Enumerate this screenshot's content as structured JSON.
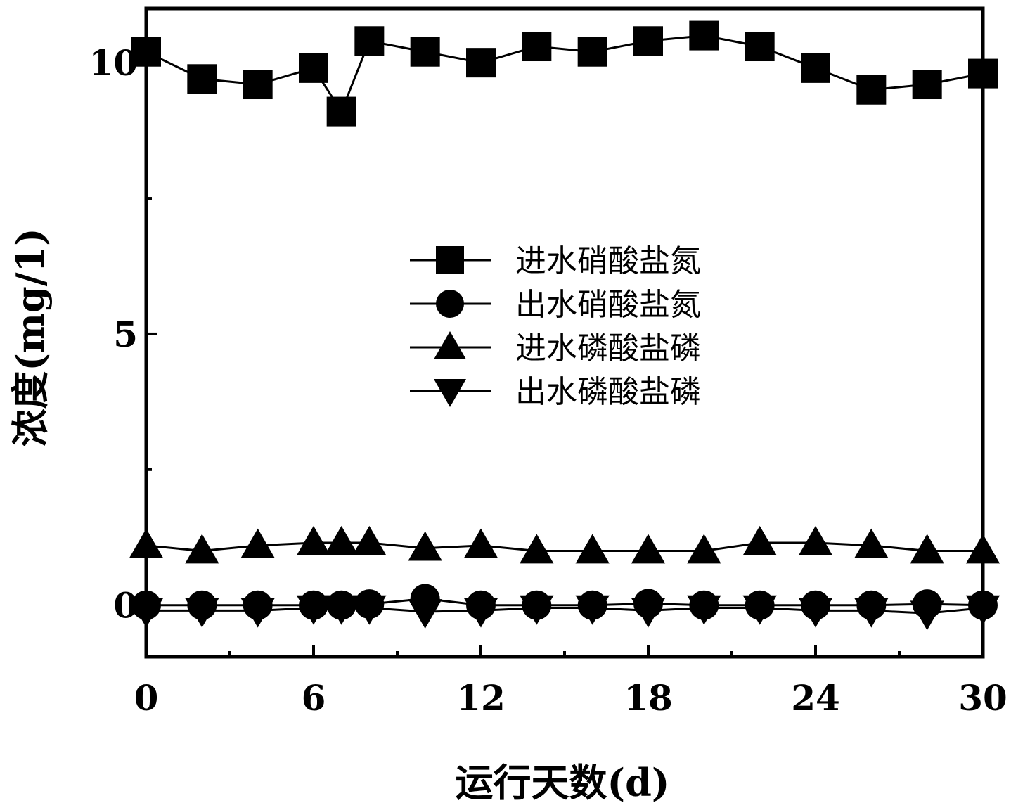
{
  "chart_data": {
    "type": "line",
    "xlabel": "运行天数(d)",
    "ylabel": "浓度(mg/1)",
    "xlim": [
      0,
      30
    ],
    "ylim": [
      -0.95,
      11.0
    ],
    "xticks": [
      "0",
      "6",
      "12",
      "18",
      "24",
      "30"
    ],
    "yticks": [
      "0",
      "5",
      "10"
    ],
    "grid": false,
    "legend_position": "center",
    "series": [
      {
        "name": "进水硝酸盐氮",
        "marker": "square",
        "x": [
          0,
          2,
          4,
          6,
          7,
          8,
          10,
          12,
          14,
          16,
          18,
          20,
          22,
          24,
          26,
          28,
          30
        ],
        "y": [
          10.2,
          9.7,
          9.6,
          9.9,
          9.1,
          10.4,
          10.2,
          10.0,
          10.3,
          10.2,
          10.4,
          10.5,
          10.3,
          9.9,
          9.5,
          9.6,
          9.8
        ]
      },
      {
        "name": "出水硝酸盐氮",
        "marker": "circle",
        "x": [
          0,
          2,
          4,
          6,
          7,
          8,
          10,
          12,
          14,
          16,
          18,
          20,
          22,
          24,
          26,
          28,
          30
        ],
        "y": [
          0.0,
          0.0,
          0.0,
          0.0,
          0.0,
          0.02,
          0.12,
          0.0,
          0.0,
          0.0,
          0.03,
          0.0,
          0.0,
          0.0,
          0.0,
          0.02,
          0.0
        ]
      },
      {
        "name": "进水磷酸盐磷",
        "marker": "triangle-up",
        "x": [
          0,
          2,
          4,
          6,
          7,
          8,
          10,
          12,
          14,
          16,
          18,
          20,
          22,
          24,
          26,
          28,
          30
        ],
        "y": [
          1.1,
          1.0,
          1.1,
          1.15,
          1.15,
          1.15,
          1.05,
          1.1,
          1.0,
          1.0,
          1.0,
          1.0,
          1.15,
          1.15,
          1.1,
          1.0,
          1.0
        ]
      },
      {
        "name": "出水磷酸盐磷",
        "marker": "triangle-down",
        "x": [
          0,
          2,
          4,
          6,
          7,
          8,
          10,
          12,
          14,
          16,
          18,
          20,
          22,
          24,
          26,
          28,
          30
        ],
        "y": [
          -0.1,
          -0.1,
          -0.1,
          -0.05,
          -0.05,
          -0.05,
          -0.12,
          -0.1,
          -0.05,
          -0.05,
          -0.1,
          -0.05,
          -0.05,
          -0.1,
          -0.1,
          -0.15,
          -0.05
        ]
      }
    ]
  }
}
